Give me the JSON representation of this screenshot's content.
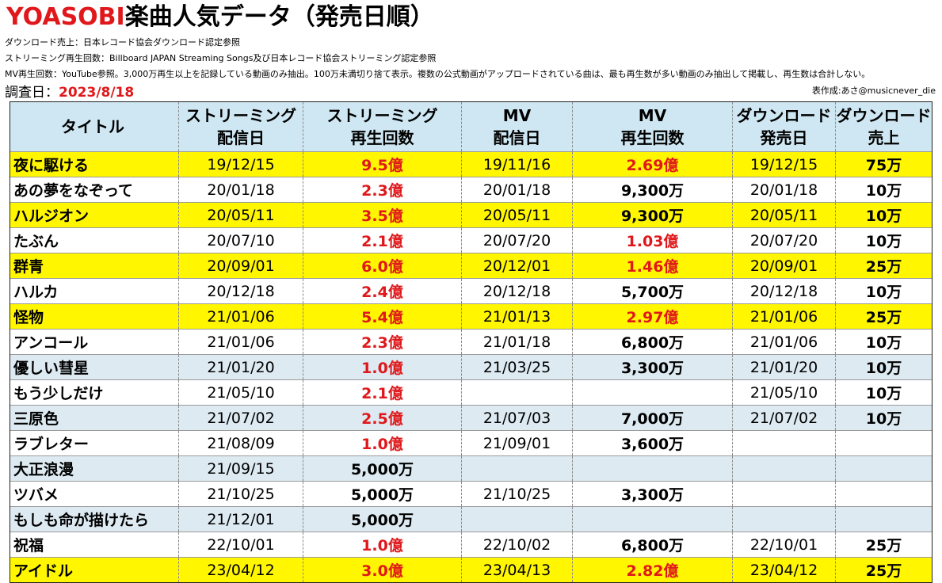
{
  "page": {
    "title_brand": "YOASOBI",
    "title_rest": "楽曲人気データ（発売日順）",
    "notes": [
      "ダウンロード売上：日本レコード協会ダウンロード認定参照",
      "ストリーミング再生回数：Billboard JAPAN Streaming Songs及び日本レコード協会ストリーミング認定参照",
      "MV再生回数：YouTube参照。3,000万再生以上を記録している動画のみ抽出。100万未満切り捨て表示。複数の公式動画がアップロードされている曲は、最も再生数が多い動画のみ抽出して掲載し、再生数は合計しない。"
    ],
    "survey_label": "調査日：",
    "survey_date": "2023/8/18",
    "author": "表作成:あさ@musicnever_die"
  },
  "colors": {
    "accent_red": "#e0181b",
    "header_blue": "#cfe7f2",
    "row_yellow": "#fff600",
    "row_blue": "#ddeaf2"
  },
  "table": {
    "headers": [
      [
        "タイトル"
      ],
      [
        "ストリーミング",
        "配信日"
      ],
      [
        "ストリーミング",
        "再生回数"
      ],
      [
        "MV",
        "配信日"
      ],
      [
        "MV",
        "再生回数"
      ],
      [
        "ダウンロード",
        "発売日"
      ],
      [
        "ダウンロード",
        "売上"
      ]
    ],
    "rows": [
      {
        "style": "yellow",
        "title": "夜に駆ける",
        "stream_date": "19/12/15",
        "stream_plays": "9.5億",
        "stream_red": true,
        "mv_date": "19/11/16",
        "mv_views": "2.69億",
        "mv_red": true,
        "dl_date": "19/12/15",
        "dl_sales": "75万"
      },
      {
        "style": "white",
        "title": "あの夢をなぞって",
        "stream_date": "20/01/18",
        "stream_plays": "2.3億",
        "stream_red": true,
        "mv_date": "20/01/18",
        "mv_views": "9,300万",
        "mv_red": false,
        "dl_date": "20/01/18",
        "dl_sales": "10万"
      },
      {
        "style": "yellow",
        "title": "ハルジオン",
        "stream_date": "20/05/11",
        "stream_plays": "3.5億",
        "stream_red": true,
        "mv_date": "20/05/11",
        "mv_views": "9,300万",
        "mv_red": false,
        "dl_date": "20/05/11",
        "dl_sales": "10万"
      },
      {
        "style": "white",
        "title": "たぶん",
        "stream_date": "20/07/10",
        "stream_plays": "2.1億",
        "stream_red": true,
        "mv_date": "20/07/20",
        "mv_views": "1.03億",
        "mv_red": true,
        "dl_date": "20/07/20",
        "dl_sales": "10万"
      },
      {
        "style": "yellow",
        "title": "群青",
        "stream_date": "20/09/01",
        "stream_plays": "6.0億",
        "stream_red": true,
        "mv_date": "20/12/01",
        "mv_views": "1.46億",
        "mv_red": true,
        "dl_date": "20/09/01",
        "dl_sales": "25万"
      },
      {
        "style": "white",
        "title": "ハルカ",
        "stream_date": "20/12/18",
        "stream_plays": "2.4億",
        "stream_red": true,
        "mv_date": "20/12/18",
        "mv_views": "5,700万",
        "mv_red": false,
        "dl_date": "20/12/18",
        "dl_sales": "10万"
      },
      {
        "style": "yellow",
        "title": "怪物",
        "stream_date": "21/01/06",
        "stream_plays": "5.4億",
        "stream_red": true,
        "mv_date": "21/01/13",
        "mv_views": "2.97億",
        "mv_red": true,
        "dl_date": "21/01/06",
        "dl_sales": "25万"
      },
      {
        "style": "white",
        "title": "アンコール",
        "stream_date": "21/01/06",
        "stream_plays": "2.3億",
        "stream_red": true,
        "mv_date": "21/01/18",
        "mv_views": "6,800万",
        "mv_red": false,
        "dl_date": "21/01/06",
        "dl_sales": "10万"
      },
      {
        "style": "blue",
        "title": "優しい彗星",
        "stream_date": "21/01/20",
        "stream_plays": "1.0億",
        "stream_red": true,
        "mv_date": "21/03/25",
        "mv_views": "3,300万",
        "mv_red": false,
        "dl_date": "21/01/20",
        "dl_sales": "10万"
      },
      {
        "style": "white",
        "title": "もう少しだけ",
        "stream_date": "21/05/10",
        "stream_plays": "2.1億",
        "stream_red": true,
        "mv_date": "",
        "mv_views": "",
        "mv_red": false,
        "dl_date": "21/05/10",
        "dl_sales": "10万"
      },
      {
        "style": "blue",
        "title": "三原色",
        "stream_date": "21/07/02",
        "stream_plays": "2.5億",
        "stream_red": true,
        "mv_date": "21/07/03",
        "mv_views": "7,000万",
        "mv_red": false,
        "dl_date": "21/07/02",
        "dl_sales": "10万"
      },
      {
        "style": "white",
        "title": "ラブレター",
        "stream_date": "21/08/09",
        "stream_plays": "1.0億",
        "stream_red": true,
        "mv_date": "21/09/01",
        "mv_views": "3,600万",
        "mv_red": false,
        "dl_date": "",
        "dl_sales": ""
      },
      {
        "style": "blue",
        "title": "大正浪漫",
        "stream_date": "21/09/15",
        "stream_plays": "5,000万",
        "stream_red": false,
        "mv_date": "",
        "mv_views": "",
        "mv_red": false,
        "dl_date": "",
        "dl_sales": ""
      },
      {
        "style": "white",
        "title": "ツバメ",
        "stream_date": "21/10/25",
        "stream_plays": "5,000万",
        "stream_red": false,
        "mv_date": "21/10/25",
        "mv_views": "3,300万",
        "mv_red": false,
        "dl_date": "",
        "dl_sales": ""
      },
      {
        "style": "blue",
        "title": "もしも命が描けたら",
        "stream_date": "21/12/01",
        "stream_plays": "5,000万",
        "stream_red": false,
        "mv_date": "",
        "mv_views": "",
        "mv_red": false,
        "dl_date": "",
        "dl_sales": ""
      },
      {
        "style": "white",
        "title": "祝福",
        "stream_date": "22/10/01",
        "stream_plays": "1.0億",
        "stream_red": true,
        "mv_date": "22/10/02",
        "mv_views": "6,800万",
        "mv_red": false,
        "dl_date": "22/10/01",
        "dl_sales": "25万"
      },
      {
        "style": "yellow",
        "title": "アイドル",
        "stream_date": "23/04/12",
        "stream_plays": "3.0億",
        "stream_red": true,
        "mv_date": "23/04/13",
        "mv_views": "2.82億",
        "mv_red": true,
        "dl_date": "23/04/12",
        "dl_sales": "25万"
      }
    ]
  }
}
